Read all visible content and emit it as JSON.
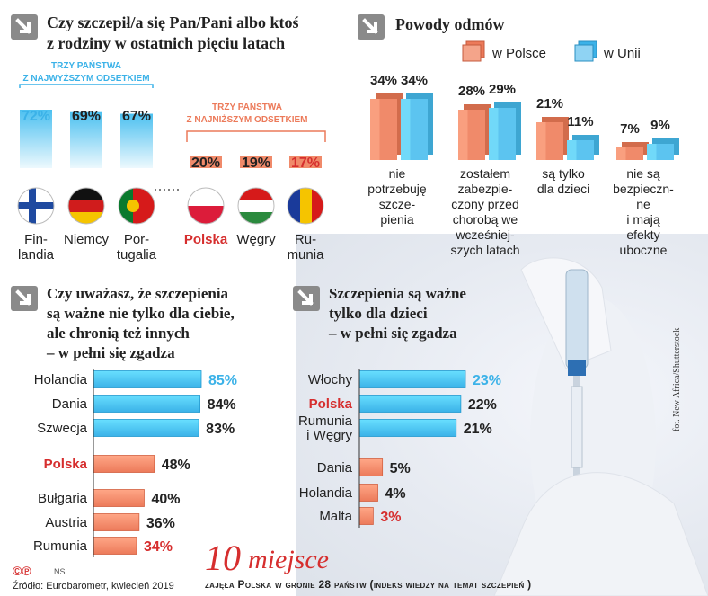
{
  "top_left": {
    "title_line1": "Czy szczepił/a się Pan/Pani albo ktoś",
    "title_line2": "z rodziny w ostatnich pięciu latach",
    "high_label_line1": "TRZY PAŃSTWA",
    "high_label_line2": "Z NAJWYŻSZYM ODSETKIEM",
    "low_label_line1": "TRZY PAŃSTWA",
    "low_label_line2": "Z NAJNIŻSZYM ODSETKIEM"
  },
  "top_right": {
    "title": "Powody odmów",
    "legend_pl": "w Polsce",
    "legend_eu": "w Unii"
  },
  "bottom_left": {
    "title_line1": "Czy uważasz, że szczepienia",
    "title_line2": "są ważne nie tylko dla ciebie,",
    "title_line3": "ale chronią też innych",
    "title_line4": "– w pełni się zgadza"
  },
  "bottom_middle": {
    "title_line1": "Szczepienia są ważne",
    "title_line2": "tylko dla dzieci",
    "title_line3": "– w pełni się zgadza"
  },
  "photo_credit": "fot. New Africa/Shutterstock",
  "footer": {
    "rank_big": "10",
    "rank_word": "miejsce",
    "rank_desc": "zajęła Polska w gronie 28 państw (indeks wiedzy na temat szczepień )",
    "logo": "©℗",
    "initials": "NS",
    "source": "Źródło: Eurobarometr, kwiecień 2019"
  },
  "colors": {
    "blue": "#3bb2e8",
    "salmon": "#ec7a5a",
    "red_highlight": "#d62e2e",
    "text": "#222222"
  },
  "chart_data": [
    {
      "type": "bar",
      "categories": [
        "Fin-\nlandia",
        "Niemcy",
        "Por-\ntugalia",
        "Polska",
        "Węgry",
        "Ru-\nmunia"
      ],
      "values": [
        72,
        69,
        67,
        20,
        19,
        17
      ],
      "value_labels": [
        "72%",
        "69%",
        "67%",
        "20%",
        "19%",
        "17%"
      ],
      "icons": [
        "flag-finland-icon",
        "flag-germany-icon",
        "flag-portugal-icon",
        "flag-poland-icon",
        "flag-hungary-icon",
        "flag-romania-icon"
      ],
      "ylim": [
        0,
        100
      ]
    },
    {
      "type": "bar",
      "categories": [
        "nie\npotrzebuję\nszcze-\npienia",
        "zostałem\nzabezpie-\nczony przed\nchorobą we\nwcześniej-\nszych latach",
        "są tylko\ndla dzieci",
        "nie są\nbezpieczne\ni mają\nefekty\nuboczne"
      ],
      "category_lines": [
        [
          "nie",
          "potrzebuję",
          "szcze-",
          "pienia"
        ],
        [
          "zostałem",
          "zabezpie-",
          "czony przed",
          "chorobą we",
          "wcześniej-",
          "szych latach"
        ],
        [
          "są tylko",
          "dla dzieci"
        ],
        [
          "nie są",
          "bezpieczn-",
          "ne",
          "i mają",
          "efekty",
          "uboczne"
        ]
      ],
      "series": [
        {
          "name": "w Polsce",
          "values": [
            34,
            28,
            21,
            7
          ]
        },
        {
          "name": "w Unii",
          "values": [
            34,
            29,
            11,
            9
          ]
        }
      ],
      "ylim": [
        0,
        40
      ]
    },
    {
      "type": "bar",
      "orientation": "horizontal",
      "categories": [
        "Holandia",
        "Dania",
        "Szwecja",
        "Polska",
        "Bułgaria",
        "Austria",
        "Rumunia"
      ],
      "values": [
        85,
        84,
        83,
        48,
        40,
        36,
        34
      ],
      "value_labels": [
        "85%",
        "84%",
        "83%",
        "48%",
        "40%",
        "36%",
        "34%"
      ],
      "xlim": [
        0,
        100
      ]
    },
    {
      "type": "bar",
      "orientation": "horizontal",
      "categories": [
        "Włochy",
        "Polska",
        "Rumunia\ni Węgry",
        "Dania",
        "Holandia",
        "Malta"
      ],
      "category_lines": [
        [
          "Włochy"
        ],
        [
          "Polska"
        ],
        [
          "Rumunia",
          "i Węgry"
        ],
        [
          "Dania"
        ],
        [
          "Holandia"
        ],
        [
          "Malta"
        ]
      ],
      "values": [
        23,
        22,
        21,
        5,
        4,
        3
      ],
      "value_labels": [
        "23%",
        "22%",
        "21%",
        "5%",
        "4%",
        "3%"
      ],
      "xlim": [
        0,
        25
      ]
    }
  ]
}
